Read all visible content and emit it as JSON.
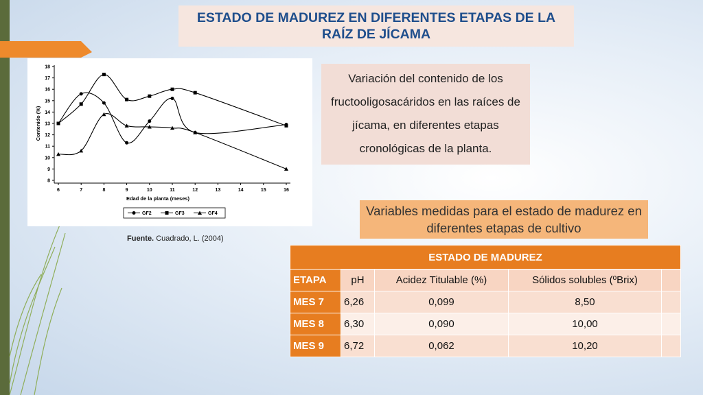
{
  "title": "ESTADO DE MADUREZ EN DIFERENTES ETAPAS DE LA RAÍZ DE JÍCAMA",
  "figure": {
    "chart_data": {
      "type": "line",
      "x_label": "Edad de la planta (meses)",
      "y_label": "Contenido (%)",
      "x": [
        6,
        7,
        8,
        9,
        10,
        11,
        12,
        16
      ],
      "xlim": [
        6,
        16
      ],
      "xticks": [
        6,
        7,
        8,
        9,
        10,
        11,
        12,
        13,
        14,
        15,
        16
      ],
      "ylim": [
        8,
        18
      ],
      "yticks": [
        8,
        9,
        10,
        11,
        12,
        13,
        14,
        15,
        16,
        17,
        18
      ],
      "series": [
        {
          "name": "GF2",
          "color": "#000000",
          "marker": "circle",
          "values": [
            13.0,
            15.6,
            14.8,
            11.3,
            13.2,
            15.2,
            12.2,
            12.9
          ]
        },
        {
          "name": "GF3",
          "color": "#000000",
          "marker": "square",
          "values": [
            13.0,
            14.7,
            17.3,
            15.1,
            15.4,
            16.0,
            15.7,
            12.8
          ]
        },
        {
          "name": "GF4",
          "color": "#000000",
          "marker": "triangle",
          "values": [
            10.3,
            10.6,
            13.8,
            12.8,
            12.7,
            12.6,
            12.2,
            9.0
          ]
        }
      ]
    }
  },
  "source": {
    "label": "Fuente.",
    "text": "Cuadrado, L. (2004)"
  },
  "description": "Variación del contenido de los fructooligosacáridos en las raíces de jícama, en diferentes etapas cronológicas de la planta.",
  "callout": "Variables medidas para el estado de madurez en diferentes etapas de cultivo",
  "table": {
    "title": "ESTADO DE MADUREZ",
    "header": [
      "ETAPA",
      "pH",
      "Acidez Titulable (%)",
      "Sólidos solubles (ºBrix)"
    ],
    "rows": [
      [
        "MES 7",
        "6,26",
        "0,099",
        "8,50"
      ],
      [
        "MES 8",
        "6,30",
        "0,090",
        "10,00"
      ],
      [
        "MES 9",
        "6,72",
        "0,062",
        "10,20"
      ]
    ]
  }
}
